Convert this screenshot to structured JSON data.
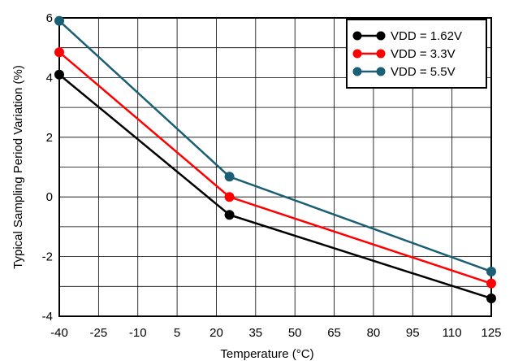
{
  "chart_data": {
    "type": "line",
    "title": "",
    "xlabel": "Temperature (°C)",
    "ylabel": "Typical Sampling Period Variation (%)",
    "x_ticks": [
      -40,
      -25,
      -10,
      5,
      20,
      35,
      50,
      65,
      80,
      95,
      110,
      125
    ],
    "y_ticks": [
      -4,
      -2,
      0,
      2,
      4,
      6
    ],
    "xlim": [
      -40,
      125
    ],
    "ylim": [
      -4,
      6
    ],
    "grid": true,
    "legend_position": "top-right",
    "series": [
      {
        "name": "VDD = 1.62V",
        "color": "#000000",
        "x": [
          -40,
          25,
          125
        ],
        "y": [
          4.1,
          -0.6,
          -3.4
        ]
      },
      {
        "name": "VDD = 3.3V",
        "color": "#ff0000",
        "x": [
          -40,
          25,
          125
        ],
        "y": [
          4.85,
          0.0,
          -2.9
        ]
      },
      {
        "name": "VDD = 5.5V",
        "color": "#1a5f73",
        "x": [
          -40,
          25,
          125
        ],
        "y": [
          5.9,
          0.68,
          -2.5
        ]
      }
    ]
  }
}
